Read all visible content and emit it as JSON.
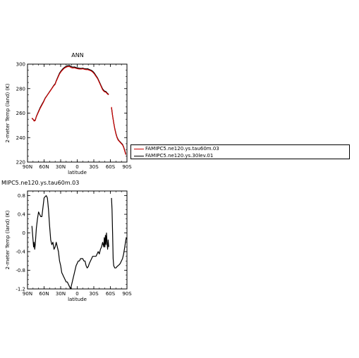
{
  "chart_data": [
    {
      "type": "line",
      "title": "ANN",
      "xlabel": "latitude",
      "ylabel": "2-meter Temp (land) (K)",
      "xlim": [
        90,
        -90
      ],
      "ylim": [
        220,
        300
      ],
      "x_ticks": [
        90,
        60,
        30,
        0,
        -30,
        -60,
        -90
      ],
      "x_tick_labels": [
        "90N",
        "60N",
        "30N",
        "0",
        "30S",
        "60S",
        "90S"
      ],
      "y_ticks": [
        220,
        240,
        260,
        280,
        300
      ],
      "y_tick_labels": [
        "220",
        "240",
        "260",
        "280",
        "300"
      ],
      "series": [
        {
          "name": "FAMIPC5.ne120.ys.tau60m.03",
          "color": "#cc0000",
          "segments": [
            [
              [
                82,
                256
              ],
              [
                80,
                255
              ],
              [
                78,
                253.5
              ],
              [
                76,
                254
              ],
              [
                74,
                257
              ],
              [
                72,
                259
              ],
              [
                70,
                261
              ],
              [
                67,
                264
              ],
              [
                64,
                266.5
              ],
              [
                61,
                269
              ],
              [
                58,
                272
              ],
              [
                55,
                274
              ],
              [
                52,
                276
              ],
              [
                49,
                278
              ],
              [
                46,
                280
              ],
              [
                43,
                282
              ],
              [
                40,
                283.5
              ],
              [
                38,
                286
              ],
              [
                35,
                289
              ],
              [
                32,
                292
              ],
              [
                29,
                294
              ],
              [
                26,
                295.5
              ],
              [
                23,
                296.8
              ],
              [
                20,
                297.5
              ],
              [
                17,
                298
              ],
              [
                14,
                298
              ],
              [
                11,
                297.2
              ],
              [
                8,
                296.8
              ],
              [
                5,
                297
              ],
              [
                2,
                296.5
              ],
              [
                -1,
                296.2
              ],
              [
                -4,
                296
              ],
              [
                -7,
                296
              ],
              [
                -10,
                296.2
              ],
              [
                -13,
                295.8
              ],
              [
                -16,
                295.5
              ],
              [
                -19,
                295.5
              ],
              [
                -22,
                295
              ],
              [
                -25,
                294.5
              ],
              [
                -28,
                293.5
              ],
              [
                -31,
                292
              ],
              [
                -34,
                290
              ],
              [
                -37,
                288
              ],
              [
                -40,
                285
              ],
              [
                -43,
                282
              ],
              [
                -46,
                279
              ],
              [
                -49,
                277.5
              ],
              [
                -52,
                277
              ],
              [
                -55,
                275.5
              ],
              [
                -57,
                275
              ]
            ],
            [
              [
                -62,
                265
              ],
              [
                -64,
                258
              ],
              [
                -66,
                252
              ],
              [
                -68,
                247
              ],
              [
                -70,
                243
              ],
              [
                -72,
                240
              ],
              [
                -74,
                238
              ],
              [
                -76,
                237
              ],
              [
                -78,
                236
              ],
              [
                -80,
                235
              ],
              [
                -82,
                234
              ],
              [
                -84,
                232
              ],
              [
                -86,
                229
              ],
              [
                -88,
                226
              ]
            ]
          ]
        },
        {
          "name": "FAMIPC5.ne120.ys.30lev.01",
          "color": "#000000",
          "segments": [
            [
              [
                82,
                255.5
              ],
              [
                80,
                255
              ],
              [
                78,
                254
              ],
              [
                76,
                254.3
              ],
              [
                74,
                257.3
              ],
              [
                72,
                259.4
              ],
              [
                70,
                261.5
              ],
              [
                67,
                264.6
              ],
              [
                64,
                267.1
              ],
              [
                61,
                269.5
              ],
              [
                58,
                272.3
              ],
              [
                55,
                274.2
              ],
              [
                52,
                276.2
              ],
              [
                49,
                278.2
              ],
              [
                46,
                280.2
              ],
              [
                43,
                282.3
              ],
              [
                40,
                284
              ],
              [
                38,
                286.4
              ],
              [
                35,
                289.6
              ],
              [
                32,
                292.7
              ],
              [
                29,
                294.6
              ],
              [
                26,
                296.2
              ],
              [
                23,
                297.4
              ],
              [
                20,
                298.2
              ],
              [
                17,
                298.8
              ],
              [
                14,
                298.9
              ],
              [
                11,
                298
              ],
              [
                8,
                297.6
              ],
              [
                5,
                297.7
              ],
              [
                2,
                297.2
              ],
              [
                -1,
                296.9
              ],
              [
                -4,
                296.6
              ],
              [
                -7,
                296.5
              ],
              [
                -10,
                296.7
              ],
              [
                -13,
                296.3
              ],
              [
                -16,
                296.1
              ],
              [
                -19,
                296.2
              ],
              [
                -22,
                295.6
              ],
              [
                -25,
                295.1
              ],
              [
                -28,
                294.2
              ],
              [
                -31,
                292.7
              ],
              [
                -34,
                290.6
              ],
              [
                -37,
                288.6
              ],
              [
                -40,
                285.6
              ],
              [
                -43,
                282.6
              ],
              [
                -46,
                279.7
              ],
              [
                -49,
                278.1
              ],
              [
                -52,
                277.6
              ],
              [
                -55,
                276
              ],
              [
                -57,
                275.4
              ]
            ],
            [
              [
                -62,
                264.4
              ],
              [
                -64,
                257.7
              ],
              [
                -66,
                252.3
              ],
              [
                -68,
                247.3
              ],
              [
                -70,
                243.5
              ],
              [
                -72,
                240.4
              ],
              [
                -74,
                238.5
              ],
              [
                -76,
                237.3
              ],
              [
                -78,
                236.4
              ],
              [
                -80,
                235.4
              ],
              [
                -82,
                234.5
              ],
              [
                -84,
                232.4
              ],
              [
                -86,
                229.5
              ],
              [
                -88,
                226.6
              ]
            ]
          ]
        }
      ]
    },
    {
      "type": "line",
      "title": "MIPC5.ne120.ys.tau60m.03",
      "xlabel": "latitude",
      "ylabel": "2-meter Temp (land) (K)",
      "xlim": [
        90,
        -90
      ],
      "ylim": [
        -1.2,
        0.9
      ],
      "x_ticks": [
        90,
        60,
        30,
        0,
        -30,
        -60,
        -90
      ],
      "x_tick_labels": [
        "90N",
        "60N",
        "30N",
        "0",
        "30S",
        "60S",
        "90S"
      ],
      "y_ticks": [
        -1.2,
        -0.8,
        -0.4,
        0,
        0.4,
        0.8
      ],
      "y_tick_labels": [
        "-1.2",
        "-0.8",
        "-0.4",
        "0",
        "0.4",
        "0.8"
      ],
      "series": [
        {
          "name": "",
          "color": "#000000",
          "segments": [
            [
              [
                82,
                0.15
              ],
              [
                80,
                -0.15
              ],
              [
                79,
                -0.3
              ],
              [
                78,
                -0.2
              ],
              [
                77,
                -0.35
              ],
              [
                76,
                -0.25
              ],
              [
                74,
                0.1
              ],
              [
                72,
                0.3
              ],
              [
                70,
                0.45
              ],
              [
                68,
                0.4
              ],
              [
                66,
                0.35
              ],
              [
                64,
                0.35
              ],
              [
                62,
                0.55
              ],
              [
                60,
                0.75
              ],
              [
                58,
                0.78
              ],
              [
                56,
                0.8
              ],
              [
                54,
                0.75
              ],
              [
                52,
                0.5
              ],
              [
                50,
                0.15
              ],
              [
                48,
                -0.15
              ],
              [
                46,
                -0.25
              ],
              [
                44,
                -0.2
              ],
              [
                42,
                -0.35
              ],
              [
                40,
                -0.3
              ],
              [
                38,
                -0.2
              ],
              [
                36,
                -0.3
              ],
              [
                34,
                -0.4
              ],
              [
                32,
                -0.6
              ],
              [
                30,
                -0.7
              ],
              [
                28,
                -0.85
              ],
              [
                26,
                -0.9
              ],
              [
                24,
                -0.95
              ],
              [
                22,
                -1.0
              ],
              [
                20,
                -1.05
              ],
              [
                18,
                -1.05
              ],
              [
                16,
                -1.1
              ],
              [
                14,
                -1.15
              ],
              [
                12,
                -1.2
              ],
              [
                10,
                -1.1
              ],
              [
                8,
                -1.0
              ],
              [
                6,
                -0.9
              ],
              [
                4,
                -0.8
              ],
              [
                2,
                -0.7
              ],
              [
                0,
                -0.65
              ],
              [
                -2,
                -0.6
              ],
              [
                -4,
                -0.6
              ],
              [
                -6,
                -0.55
              ],
              [
                -8,
                -0.55
              ],
              [
                -10,
                -0.55
              ],
              [
                -12,
                -0.6
              ],
              [
                -14,
                -0.6
              ],
              [
                -16,
                -0.7
              ],
              [
                -18,
                -0.75
              ],
              [
                -20,
                -0.72
              ],
              [
                -22,
                -0.65
              ],
              [
                -24,
                -0.6
              ],
              [
                -26,
                -0.55
              ],
              [
                -28,
                -0.5
              ],
              [
                -30,
                -0.5
              ],
              [
                -32,
                -0.5
              ],
              [
                -34,
                -0.5
              ],
              [
                -36,
                -0.45
              ],
              [
                -38,
                -0.4
              ],
              [
                -40,
                -0.45
              ],
              [
                -42,
                -0.35
              ],
              [
                -44,
                -0.3
              ],
              [
                -46,
                -0.2
              ],
              [
                -48,
                -0.3
              ],
              [
                -49,
                -0.1
              ],
              [
                -50,
                -0.3
              ],
              [
                -51,
                -0.05
              ],
              [
                -52,
                -0.25
              ],
              [
                -53,
                0.0
              ],
              [
                -54,
                -0.2
              ],
              [
                -55,
                -0.35
              ],
              [
                -56,
                -0.15
              ],
              [
                -57,
                -0.3
              ]
            ],
            [
              [
                -62,
                0.75
              ],
              [
                -63,
                0.5
              ],
              [
                -64,
                0.0
              ],
              [
                -65,
                -0.55
              ],
              [
                -66,
                -0.7
              ],
              [
                -68,
                -0.75
              ],
              [
                -70,
                -0.75
              ],
              [
                -72,
                -0.72
              ],
              [
                -74,
                -0.7
              ],
              [
                -76,
                -0.68
              ],
              [
                -78,
                -0.65
              ],
              [
                -80,
                -0.6
              ],
              [
                -82,
                -0.55
              ],
              [
                -84,
                -0.45
              ],
              [
                -86,
                -0.3
              ],
              [
                -88,
                -0.15
              ],
              [
                -89,
                -0.1
              ]
            ]
          ]
        }
      ]
    }
  ]
}
